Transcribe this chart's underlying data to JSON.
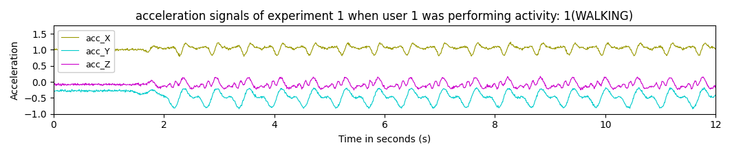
{
  "title": "acceleration signals of experiment 1 when user 1 was performing activity: 1(WALKING)",
  "xlabel": "Time in seconds (s)",
  "ylabel": "Acceleration",
  "xlim": [
    0,
    12
  ],
  "ylim": [
    -1.0,
    1.75
  ],
  "yticks": [
    -1.0,
    -0.5,
    0.0,
    0.5,
    1.0,
    1.5
  ],
  "xticks": [
    0,
    2,
    4,
    6,
    8,
    10,
    12
  ],
  "color_X": "#999900",
  "color_Y": "#00cccc",
  "color_Z": "#cc00cc",
  "legend_labels": [
    "acc_X",
    "acc_Y",
    "acc_Z"
  ],
  "figsize": [
    10.64,
    2.24
  ],
  "dpi": 100,
  "seed": 42,
  "n_samples": 1500,
  "duration": 12.0
}
